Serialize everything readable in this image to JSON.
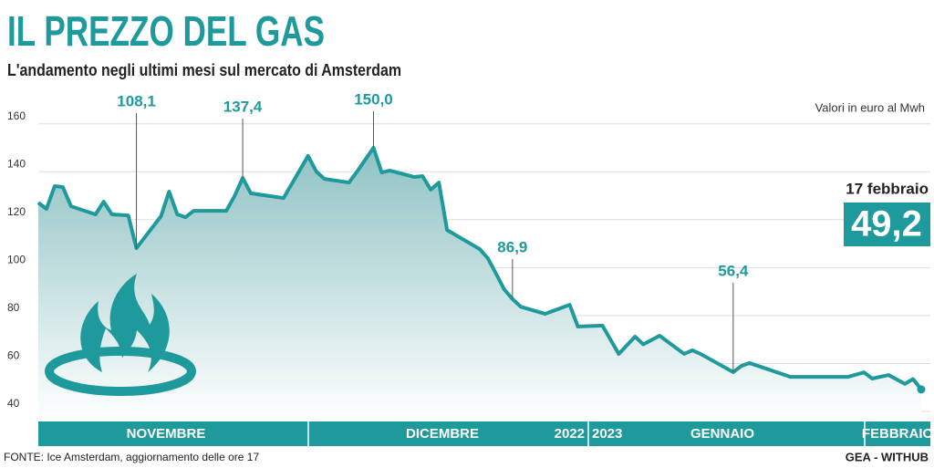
{
  "chart_data": {
    "type": "line",
    "title": "IL PREZZO DEL GAS",
    "subtitle": "L'andamento negli ultimi mesi sul mercato di Amsterdam",
    "unit_note": "Valori in euro al Mwh",
    "source": "FONTE: Ice Amsterdam, aggiornamento delle ore 17",
    "credit": "GEA - WITHUB",
    "last_date": "17 febbraio",
    "months": [
      "NOVEMBRE",
      "DICEMBRE",
      "GENNAIO",
      "FEBBRAIO"
    ],
    "years": [
      "2022",
      "2023"
    ],
    "color": "#1f9a9c",
    "grid": true,
    "xlim": [
      0,
      108
    ],
    "ylim": [
      40,
      160
    ],
    "yticks": [
      40,
      60,
      80,
      100,
      120,
      140,
      160
    ],
    "x": [
      0,
      1,
      2,
      3,
      4,
      7,
      8,
      9,
      11,
      12,
      15,
      16,
      17,
      18,
      19,
      23,
      24,
      25,
      26,
      30,
      33,
      34,
      35,
      38,
      39,
      41,
      42,
      43,
      46,
      47,
      48,
      49,
      50,
      54,
      55,
      56,
      57,
      58,
      59,
      62,
      65,
      66,
      69,
      71,
      73,
      74,
      76,
      79,
      80,
      81,
      85,
      86,
      87,
      92,
      99,
      101,
      102,
      104,
      106,
      107,
      108
    ],
    "values": [
      127.1,
      124.5,
      134.0,
      133.6,
      125.6,
      122.2,
      127.5,
      122.2,
      121.8,
      108.1,
      121.4,
      131.7,
      122.2,
      121.0,
      123.7,
      123.7,
      129.8,
      137.4,
      131.0,
      129.0,
      146.6,
      140.1,
      137.0,
      135.5,
      140.1,
      150.0,
      139.7,
      140.5,
      137.8,
      138.2,
      132.5,
      135.5,
      115.7,
      107.7,
      103.8,
      97.4,
      90.9,
      86.9,
      83.7,
      80.7,
      84.5,
      75.4,
      75.8,
      64.0,
      71.2,
      68.0,
      71.6,
      64.0,
      65.5,
      64.0,
      56.4,
      59.0,
      60.2,
      54.4,
      54.4,
      56.3,
      53.7,
      55.2,
      51.5,
      53.5,
      49.2
    ],
    "value_labels": [
      null,
      null,
      null,
      null,
      null,
      null,
      null,
      null,
      null,
      "108,1",
      null,
      null,
      null,
      null,
      null,
      null,
      null,
      "137,4",
      null,
      null,
      null,
      null,
      null,
      null,
      null,
      "150,0",
      null,
      null,
      null,
      null,
      null,
      null,
      null,
      null,
      null,
      null,
      null,
      "86,9",
      null,
      null,
      null,
      null,
      null,
      null,
      null,
      null,
      null,
      null,
      null,
      null,
      "56,4",
      null,
      null,
      null,
      null,
      null,
      null,
      null,
      null,
      null,
      "49,2"
    ]
  }
}
